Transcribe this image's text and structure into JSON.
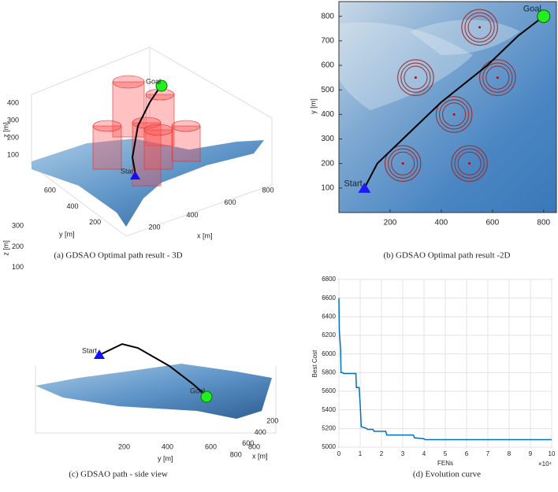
{
  "chart_data": [
    {
      "type": "surface3d",
      "caption": "(a)  GDSAO Optimal path result - 3D",
      "xlabel": "x [m]",
      "ylabel": "y [m]",
      "zlabel": "z [m]",
      "xlim": [
        100,
        900
      ],
      "xticks": [
        200,
        400,
        600,
        800
      ],
      "ylim": [
        100,
        700
      ],
      "yticks": [
        200,
        400,
        600
      ],
      "zlim": [
        50,
        450
      ],
      "zticks": [
        100,
        200,
        300,
        400
      ],
      "start_label": "Start",
      "goal_label": "Goal"
    },
    {
      "type": "map",
      "caption": "(b)  GDSAO Optimal path result -2D",
      "ylabel": "y [m]",
      "xlim": [
        0,
        850
      ],
      "ylim": [
        0,
        860
      ],
      "xticks": [
        200,
        400,
        600,
        800
      ],
      "yticks": [
        100,
        200,
        300,
        400,
        500,
        600,
        700,
        800
      ],
      "obstacles": {
        "x": [
          550,
          300,
          620,
          450,
          250,
          510
        ],
        "y": [
          755,
          550,
          550,
          400,
          200,
          200
        ],
        "r": [
          70,
          70,
          70,
          70,
          70,
          70
        ]
      },
      "path": {
        "x": [
          100,
          150,
          250,
          400,
          580,
          700,
          800
        ],
        "y": [
          100,
          200,
          300,
          450,
          600,
          720,
          800
        ]
      },
      "start_label": "Start",
      "goal_label": "Goal"
    },
    {
      "type": "surface3d",
      "caption": "(c)  GDSAO path - side view",
      "xlabel": "x [m]",
      "ylabel": "y [m]",
      "zlabel": "z [m]",
      "xlim": [
        100,
        900
      ],
      "xticks": [
        200,
        400,
        600,
        800
      ],
      "ylim": [
        100,
        900
      ],
      "yticks": [
        200,
        400,
        600,
        800
      ],
      "zlim": [
        50,
        350
      ],
      "zticks": [
        100,
        200,
        300
      ],
      "start_label": "Start",
      "goal_label": "Goal"
    },
    {
      "type": "line",
      "caption": "(d)  Evolution curve",
      "xlabel": "FENs",
      "ylabel": "Best Cost",
      "x_multiplier": "×10⁴",
      "xlim": [
        0,
        10
      ],
      "xticks": [
        0,
        1,
        2,
        3,
        4,
        5,
        6,
        7,
        8,
        9,
        10
      ],
      "ylim": [
        5000,
        6800
      ],
      "yticks": [
        5000,
        5200,
        5400,
        5600,
        5800,
        6000,
        6200,
        6400,
        6600,
        6800
      ],
      "grid": true,
      "series": [
        {
          "color": "#0072bd",
          "x": [
            0,
            0.02,
            0.08,
            0.1,
            0.18,
            0.22,
            0.8,
            0.82,
            0.95,
            1.0,
            1.05,
            1.3,
            1.35,
            1.6,
            1.65,
            2.2,
            2.25,
            3.5,
            3.55,
            4.0,
            4.05,
            10
          ],
          "values": [
            6600,
            6250,
            6050,
            5800,
            5800,
            5790,
            5790,
            5640,
            5640,
            5460,
            5220,
            5200,
            5190,
            5190,
            5170,
            5170,
            5130,
            5130,
            5100,
            5090,
            5080,
            5080
          ]
        }
      ]
    }
  ]
}
